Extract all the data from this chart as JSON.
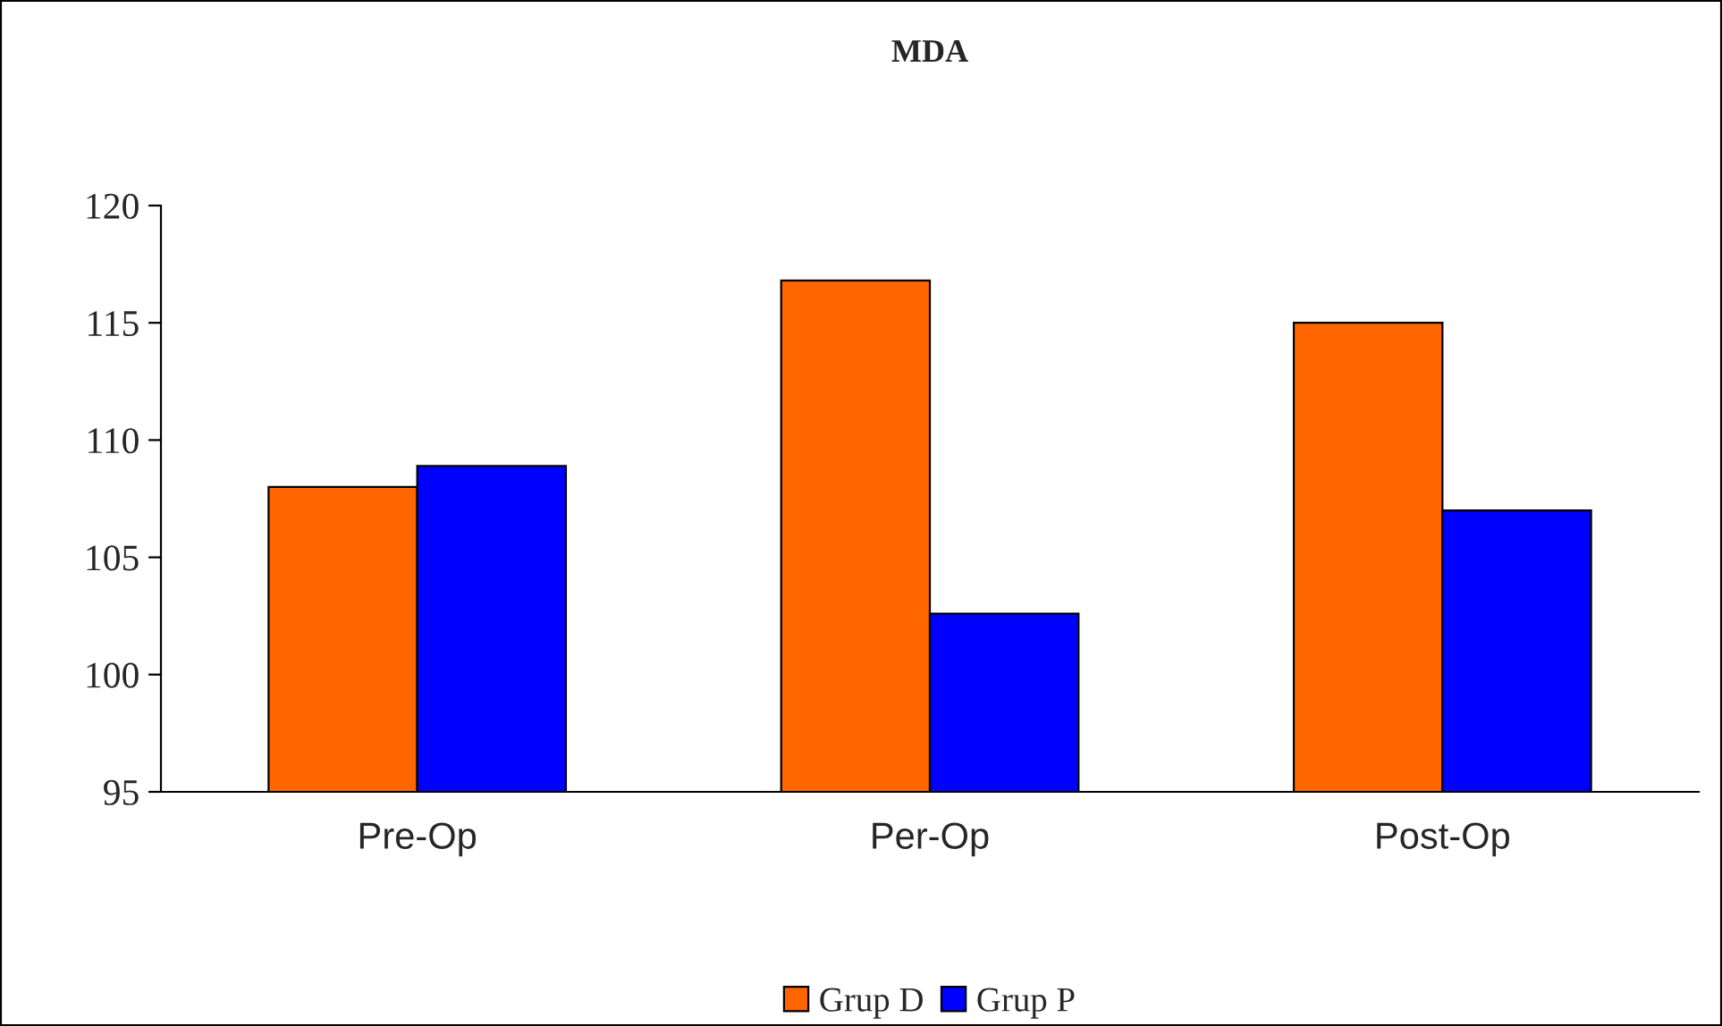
{
  "chart_data": {
    "type": "bar",
    "title": "MDA",
    "categories": [
      "Pre-Op",
      "Per-Op",
      "Post-Op"
    ],
    "series": [
      {
        "name": "Grup D",
        "color": "#ff6600",
        "values": [
          108.0,
          116.8,
          115.0
        ]
      },
      {
        "name": "Grup P",
        "color": "#0000ff",
        "values": [
          108.9,
          102.6,
          107.0
        ]
      }
    ],
    "ylim": [
      95,
      120
    ],
    "yticks": [
      95,
      100,
      105,
      110,
      115,
      120
    ],
    "grid": false,
    "legend": "bottom"
  }
}
